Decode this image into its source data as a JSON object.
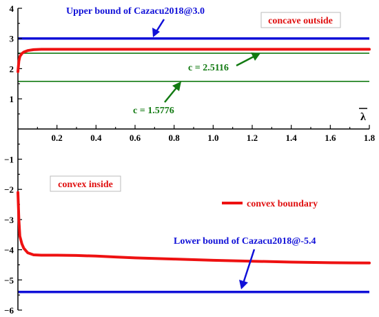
{
  "chart_data": {
    "type": "line",
    "xlim": [
      0,
      1.8
    ],
    "ylim": [
      -6,
      4
    ],
    "xlabel": "λ",
    "x_ticks": [
      "0.2",
      "0.4",
      "0.6",
      "0.8",
      "1.0",
      "1.2",
      "1.4",
      "1.6",
      "1.8"
    ],
    "y_ticks": [
      "4",
      "3",
      "2",
      "1",
      "-1",
      "-2",
      "-3",
      "-4",
      "-5",
      "-6"
    ],
    "grid": false,
    "legend": {
      "position": "right-middle",
      "entries": [
        "convex boundary"
      ]
    },
    "horizontal_lines": [
      {
        "y": 3.0,
        "color": "#1010d8"
      },
      {
        "y": 2.5116,
        "color": "#127a12"
      },
      {
        "y": 1.5776,
        "color": "#127a12"
      },
      {
        "y": -5.4,
        "color": "#1010d8"
      }
    ],
    "series": [
      {
        "name": "convex boundary",
        "color": "#ee1111",
        "segments": [
          {
            "x": [
              0.0,
              0.005,
              0.01,
              0.02,
              0.03,
              0.05,
              0.08,
              0.12,
              0.2,
              0.4,
              0.6,
              1.0,
              1.4,
              1.8
            ],
            "y": [
              1.9,
              2.25,
              2.4,
              2.5,
              2.55,
              2.6,
              2.63,
              2.64,
              2.64,
              2.64,
              2.64,
              2.64,
              2.64,
              2.64
            ]
          },
          {
            "x": [
              0.0,
              0.005,
              0.01,
              0.02,
              0.03,
              0.05,
              0.08,
              0.12,
              0.2,
              0.3,
              0.4,
              0.5,
              0.6,
              0.8,
              1.0,
              1.2,
              1.4,
              1.6,
              1.8
            ],
            "y": [
              -2.1,
              -3.0,
              -3.55,
              -3.8,
              -3.95,
              -4.1,
              -4.17,
              -4.18,
              -4.18,
              -4.19,
              -4.21,
              -4.24,
              -4.27,
              -4.31,
              -4.35,
              -4.38,
              -4.41,
              -4.43,
              -4.44
            ]
          }
        ]
      }
    ],
    "annotations": {
      "upper_bound": "Upper bound of Cazacu2018@3.0",
      "lower_bound": "Lower bound of Cazacu2018@-5.4",
      "c_upper": "c = 2.5116",
      "c_lower": "c = 1.5776",
      "concave": "concave outside",
      "convex": "convex inside"
    }
  }
}
